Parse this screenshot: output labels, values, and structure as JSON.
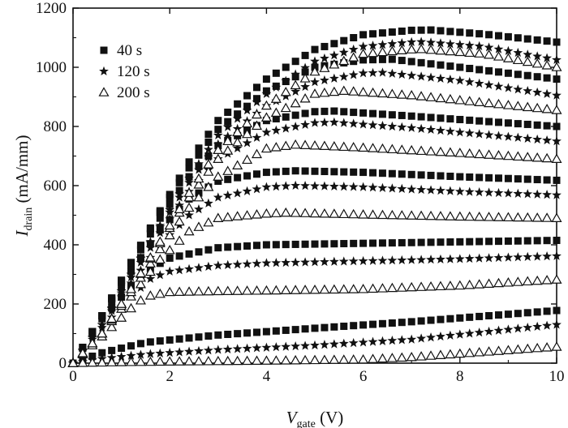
{
  "chart_data": {
    "type": "scatter",
    "title": "",
    "xlabel": {
      "symbol": "V",
      "subscript": "gate",
      "unit": " (V)"
    },
    "ylabel": {
      "symbol": "I",
      "subscript": "drain",
      "unit": " (mA/mm)"
    },
    "xlim": [
      0,
      10
    ],
    "ylim": [
      0,
      1200
    ],
    "xticks": [
      "0",
      "2",
      "4",
      "6",
      "8",
      "10"
    ],
    "yticks": [
      "0",
      "200",
      "400",
      "600",
      "800",
      "1000",
      "1200"
    ],
    "grid": false,
    "legend_position": "top-left",
    "legend": [
      {
        "label": "40 s",
        "marker": "square"
      },
      {
        "label": "120 s",
        "marker": "star"
      },
      {
        "label": "200 s",
        "marker": "triangle"
      }
    ],
    "x_sampling": {
      "start": 0.0,
      "step": 0.2,
      "count": 51
    },
    "series": [
      {
        "group": "40 s",
        "marker": "square",
        "curves": [
          {
            "y_at_x": [
              [
                0,
                0
              ],
              [
                0.6,
                35
              ],
              [
                1.5,
                70
              ],
              [
                3,
                95
              ],
              [
                5,
                118
              ],
              [
                7,
                140
              ],
              [
                10,
                178
              ]
            ]
          },
          {
            "y_at_x": [
              [
                0,
                0
              ],
              [
                0.6,
                150
              ],
              [
                1.2,
                260
              ],
              [
                1.6,
                320
              ],
              [
                2,
                355
              ],
              [
                3,
                390
              ],
              [
                4,
                400
              ],
              [
                6,
                405
              ],
              [
                8,
                410
              ],
              [
                10,
                415
              ]
            ]
          },
          {
            "y_at_x": [
              [
                0,
                0
              ],
              [
                0.6,
                160
              ],
              [
                1.2,
                310
              ],
              [
                1.8,
                450
              ],
              [
                2.4,
                555
              ],
              [
                3,
                615
              ],
              [
                4,
                645
              ],
              [
                4.6,
                650
              ],
              [
                6,
                645
              ],
              [
                8,
                630
              ],
              [
                10,
                618
              ]
            ]
          },
          {
            "y_at_x": [
              [
                0,
                0
              ],
              [
                0.6,
                160
              ],
              [
                1.2,
                330
              ],
              [
                1.8,
                490
              ],
              [
                2.4,
                630
              ],
              [
                3,
                735
              ],
              [
                4,
                820
              ],
              [
                5,
                850
              ],
              [
                5.4,
                852
              ],
              [
                7,
                835
              ],
              [
                10,
                800
              ]
            ]
          },
          {
            "y_at_x": [
              [
                0,
                0
              ],
              [
                0.6,
                160
              ],
              [
                1.2,
                340
              ],
              [
                1.8,
                510
              ],
              [
                2.4,
                660
              ],
              [
                3,
                790
              ],
              [
                4,
                920
              ],
              [
                5,
                1000
              ],
              [
                6,
                1025
              ],
              [
                6.6,
                1027
              ],
              [
                8,
                1000
              ],
              [
                10,
                960
              ]
            ]
          },
          {
            "y_at_x": [
              [
                0,
                0
              ],
              [
                0.6,
                160
              ],
              [
                1.2,
                340
              ],
              [
                1.8,
                515
              ],
              [
                2.4,
                680
              ],
              [
                3,
                820
              ],
              [
                4,
                960
              ],
              [
                5,
                1060
              ],
              [
                6,
                1110
              ],
              [
                7,
                1125
              ],
              [
                7.4,
                1126
              ],
              [
                8.5,
                1112
              ],
              [
                10,
                1085
              ]
            ]
          }
        ]
      },
      {
        "group": "120 s",
        "marker": "star",
        "curves": [
          {
            "y_at_x": [
              [
                0,
                0
              ],
              [
                0.6,
                15
              ],
              [
                1.5,
                30
              ],
              [
                3,
                45
              ],
              [
                5,
                60
              ],
              [
                7,
                80
              ],
              [
                10,
                130
              ]
            ]
          },
          {
            "y_at_x": [
              [
                0,
                0
              ],
              [
                0.6,
                120
              ],
              [
                1.2,
                225
              ],
              [
                1.6,
                285
              ],
              [
                2,
                310
              ],
              [
                3,
                330
              ],
              [
                4,
                338
              ],
              [
                6,
                345
              ],
              [
                8,
                352
              ],
              [
                10,
                362
              ]
            ]
          },
          {
            "y_at_x": [
              [
                0,
                0
              ],
              [
                0.6,
                130
              ],
              [
                1.2,
                270
              ],
              [
                1.8,
                400
              ],
              [
                2.4,
                500
              ],
              [
                3,
                560
              ],
              [
                4,
                595
              ],
              [
                4.6,
                600
              ],
              [
                6,
                595
              ],
              [
                8,
                580
              ],
              [
                10,
                568
              ]
            ]
          },
          {
            "y_at_x": [
              [
                0,
                0
              ],
              [
                0.6,
                130
              ],
              [
                1.2,
                290
              ],
              [
                1.8,
                440
              ],
              [
                2.4,
                580
              ],
              [
                3,
                690
              ],
              [
                4,
                780
              ],
              [
                5,
                812
              ],
              [
                5.4,
                814
              ],
              [
                7,
                795
              ],
              [
                10,
                750
              ]
            ]
          },
          {
            "y_at_x": [
              [
                0,
                0
              ],
              [
                0.6,
                130
              ],
              [
                1.2,
                300
              ],
              [
                1.8,
                460
              ],
              [
                2.4,
                610
              ],
              [
                3,
                740
              ],
              [
                4,
                870
              ],
              [
                5,
                950
              ],
              [
                6,
                980
              ],
              [
                6.4,
                982
              ],
              [
                8,
                955
              ],
              [
                10,
                905
              ]
            ]
          },
          {
            "y_at_x": [
              [
                0,
                0
              ],
              [
                0.6,
                130
              ],
              [
                1.2,
                300
              ],
              [
                1.8,
                465
              ],
              [
                2.4,
                625
              ],
              [
                3,
                770
              ],
              [
                4,
                910
              ],
              [
                5,
                1020
              ],
              [
                6,
                1070
              ],
              [
                7,
                1085
              ],
              [
                7.2,
                1086
              ],
              [
                8.5,
                1070
              ],
              [
                10,
                1025
              ]
            ]
          }
        ]
      },
      {
        "group": "200 s",
        "marker": "triangle",
        "curves": [
          {
            "y_at_x": [
              [
                0,
                0
              ],
              [
                1,
                3
              ],
              [
                2,
                5
              ],
              [
                4,
                8
              ],
              [
                6,
                12
              ],
              [
                7,
                20
              ],
              [
                10,
                55
              ]
            ]
          },
          {
            "y_at_x": [
              [
                0,
                0
              ],
              [
                0.6,
                90
              ],
              [
                1.2,
                185
              ],
              [
                1.5,
                225
              ],
              [
                2,
                240
              ],
              [
                3,
                243
              ],
              [
                4,
                245
              ],
              [
                6,
                250
              ],
              [
                8,
                262
              ],
              [
                10,
                282
              ]
            ]
          },
          {
            "y_at_x": [
              [
                0,
                0
              ],
              [
                0.6,
                100
              ],
              [
                1.2,
                225
              ],
              [
                1.8,
                350
              ],
              [
                2.4,
                445
              ],
              [
                3,
                490
              ],
              [
                4,
                505
              ],
              [
                4.4,
                508
              ],
              [
                6,
                502
              ],
              [
                8,
                495
              ],
              [
                10,
                490
              ]
            ]
          },
          {
            "y_at_x": [
              [
                0,
                0
              ],
              [
                0.6,
                100
              ],
              [
                1.2,
                240
              ],
              [
                1.8,
                385
              ],
              [
                2.4,
                525
              ],
              [
                3,
                630
              ],
              [
                4,
                725
              ],
              [
                4.6,
                738
              ],
              [
                6,
                728
              ],
              [
                8,
                710
              ],
              [
                10,
                690
              ]
            ]
          },
          {
            "y_at_x": [
              [
                0,
                0
              ],
              [
                0.6,
                100
              ],
              [
                1.2,
                250
              ],
              [
                1.8,
                405
              ],
              [
                2.4,
                560
              ],
              [
                3,
                690
              ],
              [
                4,
                830
              ],
              [
                5,
                910
              ],
              [
                5.6,
                920
              ],
              [
                7,
                905
              ],
              [
                10,
                855
              ]
            ]
          },
          {
            "y_at_x": [
              [
                0,
                0
              ],
              [
                0.6,
                100
              ],
              [
                1.2,
                250
              ],
              [
                1.8,
                410
              ],
              [
                2.4,
                575
              ],
              [
                3,
                720
              ],
              [
                4,
                870
              ],
              [
                5,
                985
              ],
              [
                6,
                1045
              ],
              [
                7,
                1060
              ],
              [
                7.2,
                1061
              ],
              [
                8.5,
                1045
              ],
              [
                10,
                1000
              ]
            ]
          }
        ]
      }
    ]
  }
}
